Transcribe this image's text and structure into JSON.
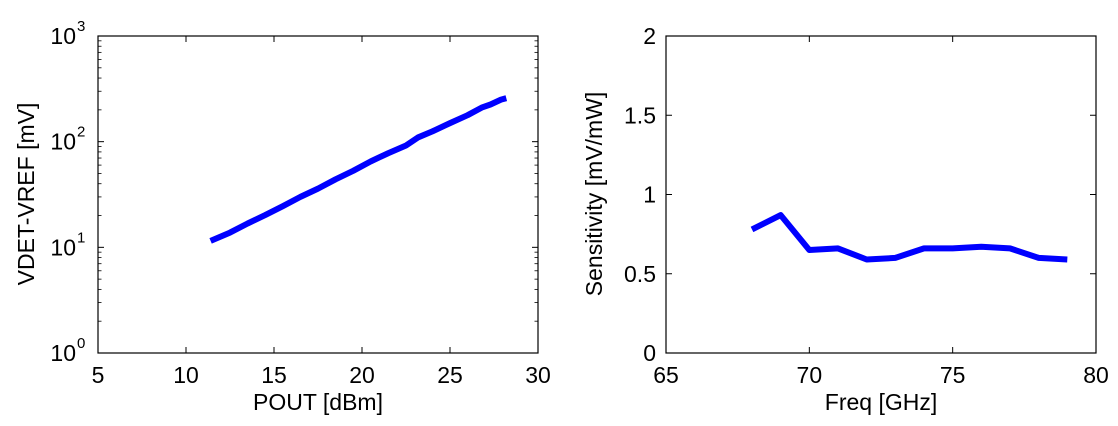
{
  "chart_data": [
    {
      "type": "line",
      "xlabel": "POUT [dBm]",
      "ylabel": "VDET-VREF [mV]",
      "xlim": [
        5,
        30
      ],
      "ylim": [
        1,
        1000
      ],
      "yscale": "log",
      "x_ticks": [
        "5",
        "10",
        "15",
        "20",
        "25",
        "30"
      ],
      "y_ticks": [
        {
          "base": "10",
          "exp": "0"
        },
        {
          "base": "10",
          "exp": "1"
        },
        {
          "base": "10",
          "exp": "2"
        },
        {
          "base": "10",
          "exp": "3"
        }
      ],
      "grid": false,
      "series": [
        {
          "color": "#0000ff",
          "x": [
            11.4,
            12.5,
            13.5,
            14.5,
            15.5,
            16.5,
            17.5,
            18.5,
            19.5,
            20.5,
            21.5,
            22.5,
            23.2,
            24.0,
            25.0,
            26.0,
            26.8,
            27.3,
            27.9,
            28.2
          ],
          "y": [
            11.5,
            13.8,
            16.8,
            20.2,
            24.5,
            30,
            36,
            44,
            53,
            65,
            78,
            92,
            110,
            125,
            150,
            178,
            210,
            225,
            250,
            258
          ]
        }
      ]
    },
    {
      "type": "line",
      "xlabel": "Freq [GHz]",
      "ylabel": "Sensitivity [mV/mW]",
      "xlim": [
        65,
        80
      ],
      "ylim": [
        0,
        2
      ],
      "x_ticks": [
        "65",
        "70",
        "75",
        "80"
      ],
      "y_ticks": [
        "0",
        "0.5",
        "1",
        "1.5",
        "2"
      ],
      "grid": false,
      "series": [
        {
          "color": "#0000ff",
          "x": [
            68,
            69,
            70,
            71,
            72,
            73,
            74,
            75,
            76,
            77,
            78,
            79
          ],
          "y": [
            0.78,
            0.87,
            0.65,
            0.66,
            0.59,
            0.6,
            0.66,
            0.66,
            0.67,
            0.66,
            0.6,
            0.59
          ]
        }
      ]
    }
  ]
}
